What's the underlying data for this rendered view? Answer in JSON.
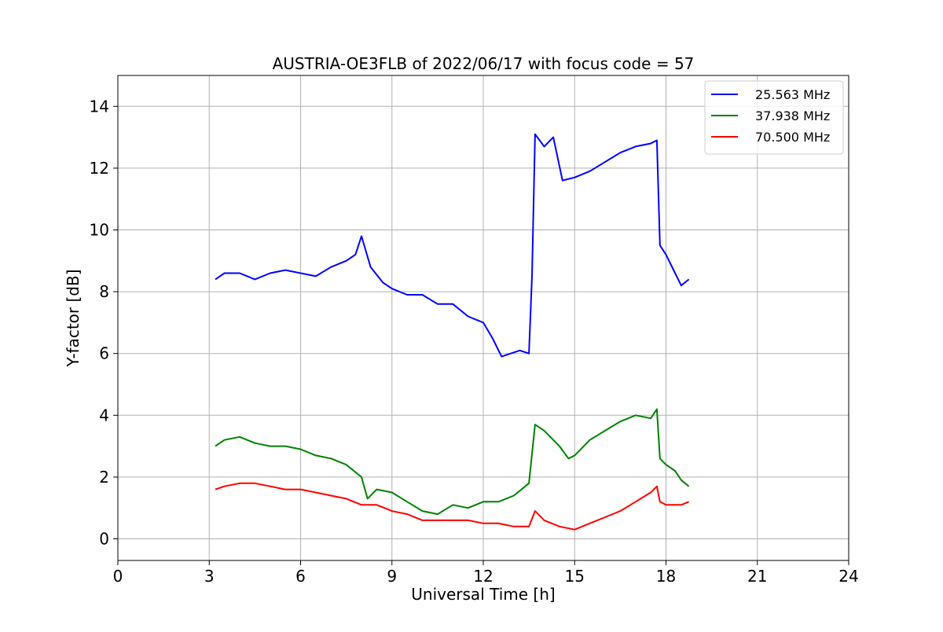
{
  "chart_data": {
    "type": "line",
    "title": "AUSTRIA-OE3FLB of 2022/06/17 with focus code = 57",
    "xlabel": "Universal Time [h]",
    "ylabel": "Y-factor [dB]",
    "xlim": [
      0,
      24
    ],
    "ylim": [
      -0.7,
      15
    ],
    "xticks": [
      0,
      3,
      6,
      9,
      12,
      15,
      18,
      21,
      24
    ],
    "yticks": [
      0,
      2,
      4,
      6,
      8,
      10,
      12,
      14
    ],
    "grid": true,
    "legend_position": "top-right",
    "series": [
      {
        "name": "25.563 MHz",
        "color": "#0000ff",
        "x": [
          3.2,
          3.5,
          4.0,
          4.5,
          5.0,
          5.5,
          6.0,
          6.5,
          7.0,
          7.5,
          7.8,
          8.0,
          8.3,
          8.7,
          9.0,
          9.5,
          10.0,
          10.5,
          11.0,
          11.5,
          12.0,
          12.3,
          12.6,
          12.9,
          13.2,
          13.5,
          13.6,
          13.7,
          14.0,
          14.3,
          14.6,
          15.0,
          15.5,
          16.0,
          16.5,
          17.0,
          17.5,
          17.7,
          17.8,
          18.0,
          18.3,
          18.5,
          18.75
        ],
        "y": [
          8.4,
          8.6,
          8.6,
          8.4,
          8.6,
          8.7,
          8.6,
          8.5,
          8.8,
          9.0,
          9.2,
          9.8,
          8.8,
          8.3,
          8.1,
          7.9,
          7.9,
          7.6,
          7.6,
          7.2,
          7.0,
          6.5,
          5.9,
          6.0,
          6.1,
          6.0,
          8.5,
          13.1,
          12.7,
          13.0,
          11.6,
          11.7,
          11.9,
          12.2,
          12.5,
          12.7,
          12.8,
          12.9,
          9.5,
          9.2,
          8.6,
          8.2,
          8.4
        ]
      },
      {
        "name": "37.938 MHz",
        "color": "#008000",
        "x": [
          3.2,
          3.5,
          4.0,
          4.5,
          5.0,
          5.5,
          6.0,
          6.5,
          7.0,
          7.5,
          8.0,
          8.2,
          8.5,
          9.0,
          9.5,
          10.0,
          10.5,
          11.0,
          11.5,
          12.0,
          12.5,
          13.0,
          13.5,
          13.7,
          14.0,
          14.5,
          14.8,
          15.0,
          15.5,
          16.0,
          16.5,
          17.0,
          17.5,
          17.7,
          17.8,
          18.0,
          18.3,
          18.5,
          18.75
        ],
        "y": [
          3.0,
          3.2,
          3.3,
          3.1,
          3.0,
          3.0,
          2.9,
          2.7,
          2.6,
          2.4,
          2.0,
          1.3,
          1.6,
          1.5,
          1.2,
          0.9,
          0.8,
          1.1,
          1.0,
          1.2,
          1.2,
          1.4,
          1.8,
          3.7,
          3.5,
          3.0,
          2.6,
          2.7,
          3.2,
          3.5,
          3.8,
          4.0,
          3.9,
          4.2,
          2.6,
          2.4,
          2.2,
          1.9,
          1.7
        ]
      },
      {
        "name": "70.500 MHz",
        "color": "#ff0000",
        "x": [
          3.2,
          3.5,
          4.0,
          4.5,
          5.0,
          5.5,
          6.0,
          6.5,
          7.0,
          7.5,
          8.0,
          8.5,
          9.0,
          9.5,
          10.0,
          10.5,
          11.0,
          11.5,
          12.0,
          12.5,
          13.0,
          13.5,
          13.7,
          14.0,
          14.5,
          15.0,
          15.5,
          16.0,
          16.5,
          17.0,
          17.5,
          17.7,
          17.8,
          18.0,
          18.5,
          18.75
        ],
        "y": [
          1.6,
          1.7,
          1.8,
          1.8,
          1.7,
          1.6,
          1.6,
          1.5,
          1.4,
          1.3,
          1.1,
          1.1,
          0.9,
          0.8,
          0.6,
          0.6,
          0.6,
          0.6,
          0.5,
          0.5,
          0.4,
          0.4,
          0.9,
          0.6,
          0.4,
          0.3,
          0.5,
          0.7,
          0.9,
          1.2,
          1.5,
          1.7,
          1.2,
          1.1,
          1.1,
          1.2
        ]
      }
    ]
  }
}
